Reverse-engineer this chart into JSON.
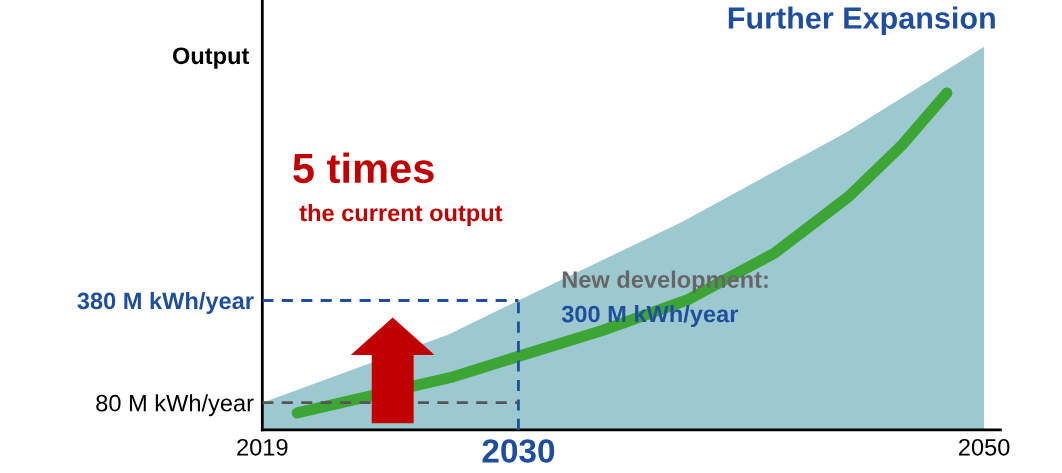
{
  "chart_data": {
    "type": "area",
    "ylabel": "Output",
    "x": [
      2019,
      2027,
      2030,
      2037,
      2044,
      2050
    ],
    "series": [
      {
        "color": "#9cc8cf",
        "values": [
          80,
          280,
          380,
          610,
          870,
          1125
        ]
      },
      {
        "type": "line",
        "color": "#3ca535",
        "x": [
          2020.5,
          2027.2,
          2030,
          2033.6,
          2037.3,
          2041,
          2044.2,
          2046.5,
          2048.4
        ],
        "values": [
          50,
          156,
          216,
          292,
          383,
          519,
          686,
          838,
          989
        ]
      }
    ],
    "xlim": [
      2019,
      2050.7
    ],
    "ylim": [
      0,
      1262
    ],
    "xticks": [
      2019,
      2030,
      2050
    ],
    "yticks": [
      {
        "value": 80,
        "label": "80 M kWh/year"
      },
      {
        "value": 380,
        "label": "380 M kWh/year"
      }
    ],
    "ref_lines": [
      {
        "axis": "x",
        "value": 2030,
        "color": "#1f4e9c",
        "line_style": "dashed"
      },
      {
        "axis": "y",
        "value": 380,
        "color": "#1f4e9c",
        "line_style": "dashed"
      },
      {
        "axis": "y",
        "value": 80,
        "color": "#555555",
        "line_style": "dashed"
      }
    ],
    "annotations": [
      "Further Expansion",
      "5 times",
      "the current output",
      "New development:",
      "300 M kWh/year"
    ],
    "grid": false,
    "legend": false
  }
}
